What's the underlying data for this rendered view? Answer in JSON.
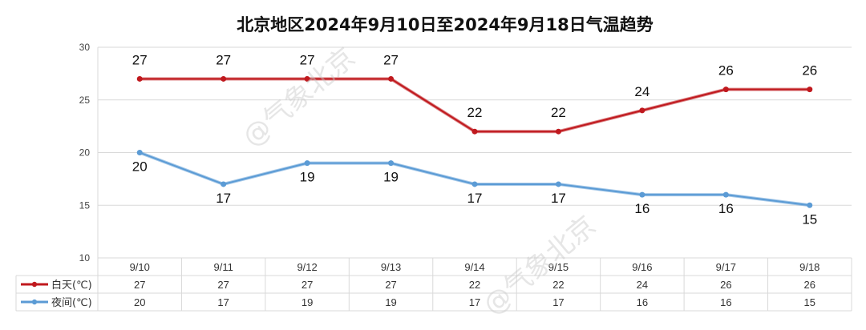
{
  "chart_data": {
    "type": "line",
    "title": "北京地区2024年9月10日至2024年9月18日气温趋势",
    "categories": [
      "9/10",
      "9/11",
      "9/12",
      "9/13",
      "9/14",
      "9/15",
      "9/16",
      "9/17",
      "9/18"
    ],
    "ylim": [
      10,
      30
    ],
    "yticks": [
      10,
      15,
      20,
      25,
      30
    ],
    "grid": true,
    "legend": "data-table-left",
    "series": [
      {
        "name": "白天(℃)",
        "color": "#c0191e",
        "values": [
          27,
          27,
          27,
          27,
          22,
          22,
          24,
          26,
          26
        ]
      },
      {
        "name": "夜间(℃)",
        "color": "#5b9bd5",
        "values": [
          20,
          17,
          19,
          19,
          17,
          17,
          16,
          16,
          15
        ]
      }
    ],
    "watermark": "@气象北京"
  }
}
